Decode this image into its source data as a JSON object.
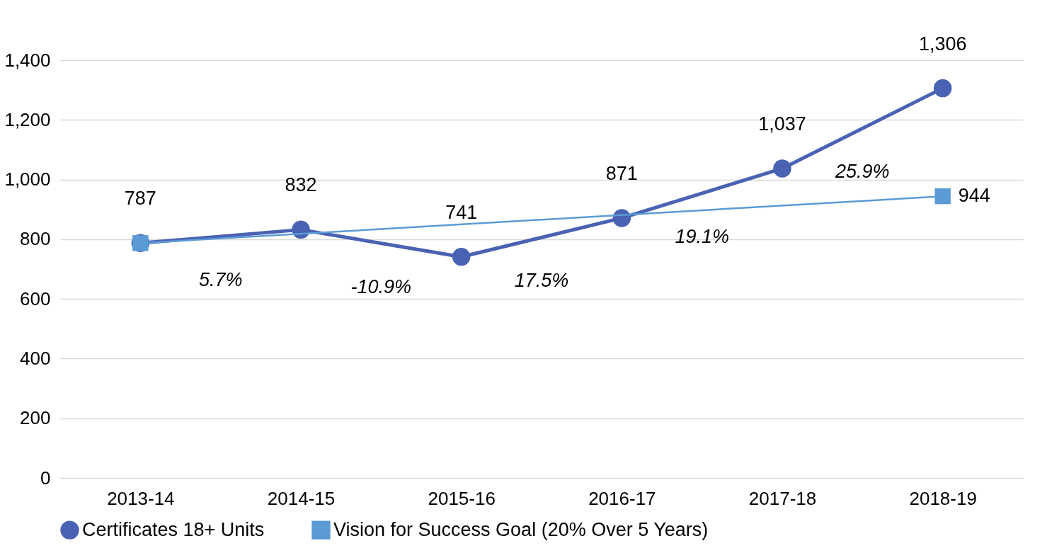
{
  "chart_data": {
    "type": "line",
    "categories": [
      "2013-14",
      "2014-15",
      "2015-16",
      "2016-17",
      "2017-18",
      "2018-19"
    ],
    "ylim": [
      0,
      1400
    ],
    "yticks": [
      {
        "value": 0,
        "label": "0"
      },
      {
        "value": 200,
        "label": "200"
      },
      {
        "value": 400,
        "label": "400"
      },
      {
        "value": 600,
        "label": "600"
      },
      {
        "value": 800,
        "label": "800"
      },
      {
        "value": 1000,
        "label": "1,000"
      },
      {
        "value": 1200,
        "label": "1,200"
      },
      {
        "value": 1400,
        "label": "1,400"
      }
    ],
    "grid": "y",
    "legend": "bottom",
    "series": [
      {
        "name": "Certificates 18+ Units",
        "color": "#4a62b3",
        "marker": "circle",
        "values": [
          787,
          832,
          741,
          871,
          1037,
          1306
        ],
        "value_labels": [
          "787",
          "832",
          "741",
          "871",
          "1,037",
          "1,306"
        ]
      },
      {
        "name": "Vision for Success Goal (20% Over 5 Years)",
        "color": "#5b9bd5",
        "marker": "square",
        "x": [
          "2013-14",
          "2018-19"
        ],
        "values": [
          787,
          944
        ],
        "value_labels": [
          null,
          "944"
        ]
      }
    ],
    "annotations": [
      "5.7%",
      "-10.9%",
      "17.5%",
      "19.1%",
      "25.9%"
    ]
  }
}
